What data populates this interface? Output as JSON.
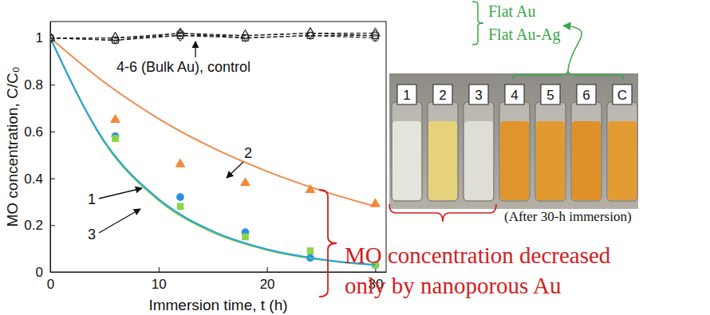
{
  "chart_data": {
    "type": "line",
    "x_label": "Immersion time, t (h)",
    "y_label": "MO concentration, C/C₀",
    "xlim": [
      0,
      31
    ],
    "ylim": [
      0,
      1.07
    ],
    "xticks": [
      0,
      10,
      20,
      30
    ],
    "yticks": [
      0,
      0.2,
      0.4,
      0.6,
      0.8,
      1
    ],
    "grid": false,
    "series": [
      {
        "type": "scatter",
        "color": "#2b8fe6",
        "marker": "circle",
        "x": [
          6,
          12,
          18,
          24,
          30
        ],
        "values": [
          0.58,
          0.32,
          0.17,
          0.06,
          0.03
        ]
      },
      {
        "type": "scatter",
        "color": "#f5883e",
        "marker": "triangle",
        "x": [
          6,
          12,
          18,
          24,
          30
        ],
        "values": [
          0.65,
          0.46,
          0.38,
          0.35,
          0.29
        ]
      },
      {
        "type": "scatter",
        "color": "#8cd44a",
        "marker": "square",
        "x": [
          6,
          12,
          18,
          24,
          30
        ],
        "values": [
          0.57,
          0.28,
          0.15,
          0.09,
          0.03
        ]
      },
      {
        "type": "line",
        "color": "#7ccf3c",
        "marker": "none",
        "line_style": "solid",
        "x": [
          0,
          5,
          10,
          15,
          20,
          25,
          30
        ],
        "values": [
          1,
          0.553,
          0.306,
          0.169,
          0.094,
          0.052,
          0.029
        ]
      },
      {
        "type": "line",
        "color": "#2aa0e0",
        "marker": "none",
        "line_style": "solid",
        "x": [
          0,
          5,
          10,
          15,
          20,
          25,
          30
        ],
        "values": [
          1,
          0.558,
          0.312,
          0.174,
          0.097,
          0.054,
          0.03
        ]
      },
      {
        "type": "line",
        "color": "#f08a4b",
        "marker": "none",
        "line_style": "solid",
        "x": [
          0,
          5,
          10,
          15,
          20,
          25,
          30
        ],
        "values": [
          1,
          0.81,
          0.655,
          0.53,
          0.43,
          0.348,
          0.28
        ]
      },
      {
        "type": "line",
        "color": "#222222",
        "marker": "circle-open",
        "line_style": "dashed",
        "x": [
          0,
          6,
          12,
          18,
          24,
          30
        ],
        "values": [
          1,
          0.99,
          1.02,
          1.0,
          1.01,
          1.0
        ]
      },
      {
        "type": "line",
        "color": "#222222",
        "marker": "triangle-open",
        "line_style": "dashed",
        "x": [
          0,
          6,
          12,
          18,
          24,
          30
        ],
        "values": [
          1,
          1.0,
          1.02,
          1.01,
          1.02,
          1.02
        ]
      },
      {
        "type": "line",
        "color": "#222222",
        "marker": "square-open",
        "line_style": "dashed",
        "x": [
          0,
          6,
          12,
          18,
          24,
          30
        ],
        "values": [
          1,
          0.99,
          1.01,
          1.0,
          1.01,
          1.01
        ]
      },
      {
        "type": "line",
        "color": "#222222",
        "marker": "diamond-open",
        "line_style": "dashed",
        "x": [
          0,
          6,
          12,
          18,
          24,
          30
        ],
        "values": [
          1,
          1.0,
          1.01,
          1.01,
          1.02,
          1.01
        ]
      }
    ],
    "annotations": [
      "1",
      "2",
      "3",
      "4-6 (Bulk Au), control",
      "Flat Au",
      "Flat Au-Ag",
      "(After 30-h immersion)",
      "MO concentration decreased",
      "only by nanoporous Au"
    ],
    "photo_labels": [
      "1",
      "2",
      "3",
      "4",
      "5",
      "6",
      "C"
    ]
  }
}
